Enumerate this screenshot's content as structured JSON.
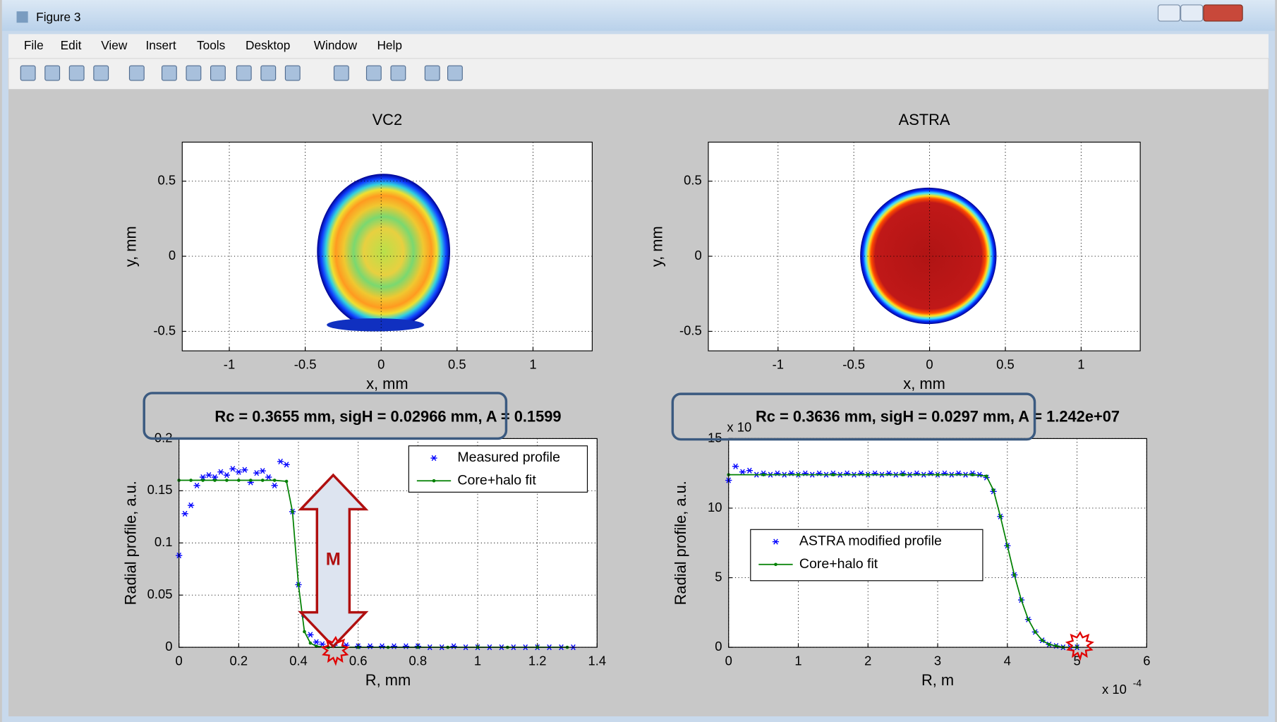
{
  "window": {
    "title": "Figure 3",
    "menu": [
      "File",
      "Edit",
      "View",
      "Insert",
      "Tools",
      "Desktop",
      "Window",
      "Help"
    ]
  },
  "annotations": {
    "arrow_label": "M"
  },
  "chart_data": [
    {
      "type": "image",
      "title": "VC2",
      "xlabel": "x, mm",
      "ylabel": "y, mm",
      "xlim": [
        -1.31,
        1.39
      ],
      "ylim": [
        -0.63,
        0.76
      ],
      "xticks": [
        -1,
        -0.5,
        0,
        0.5,
        1
      ],
      "yticks": [
        -0.5,
        0,
        0.5
      ],
      "grid": true,
      "colormap": "jet"
    },
    {
      "type": "image",
      "title": "ASTRA",
      "xlabel": "x, mm",
      "ylabel": "y, mm",
      "xlim": [
        -1.46,
        1.39
      ],
      "ylim": [
        -0.63,
        0.76
      ],
      "xticks": [
        -1,
        -0.5,
        0,
        0.5,
        1
      ],
      "yticks": [
        -0.5,
        0,
        0.5
      ],
      "grid": true,
      "colormap": "jet"
    },
    {
      "type": "line",
      "title": "Rc = 0.3655 mm,  sigH = 0.02966 mm,  A = 0.1599",
      "xlabel": "R, mm",
      "ylabel": "Radial profile, a.u.",
      "xlim": [
        0,
        1.4
      ],
      "ylim": [
        0,
        0.2
      ],
      "xticks": [
        0,
        0.2,
        0.4,
        0.6,
        0.8,
        1,
        1.2,
        1.4
      ],
      "yticks": [
        0,
        0.05,
        0.1,
        0.15,
        0.2
      ],
      "grid": true,
      "legend": "upper right",
      "series": [
        {
          "name": "Measured profile",
          "color": "#0000ff",
          "marker": "*",
          "line": false,
          "x": [
            0,
            0.02,
            0.04,
            0.06,
            0.08,
            0.1,
            0.12,
            0.14,
            0.16,
            0.18,
            0.2,
            0.22,
            0.24,
            0.26,
            0.28,
            0.3,
            0.32,
            0.34,
            0.36,
            0.38,
            0.4,
            0.42,
            0.44,
            0.46,
            0.48,
            0.52,
            0.56,
            0.6,
            0.64,
            0.68,
            0.72,
            0.76,
            0.8,
            0.84,
            0.88,
            0.92,
            0.96,
            1.0,
            1.04,
            1.08,
            1.12,
            1.16,
            1.2,
            1.24,
            1.28,
            1.32
          ],
          "values": [
            0.088,
            0.128,
            0.136,
            0.155,
            0.163,
            0.165,
            0.163,
            0.168,
            0.165,
            0.171,
            0.168,
            0.17,
            0.158,
            0.167,
            0.169,
            0.163,
            0.155,
            0.178,
            0.175,
            0.13,
            0.06,
            0.03,
            0.012,
            0.005,
            0.003,
            0.002,
            0.002,
            0.001,
            0.001,
            0.001,
            0.001,
            0.001,
            0.001,
            0,
            0,
            0.001,
            0,
            0,
            0,
            0,
            0,
            0,
            0,
            0,
            0,
            0
          ]
        },
        {
          "name": "Core+halo fit",
          "color": "#008000",
          "marker": ".",
          "line": true,
          "x": [
            0,
            0.04,
            0.08,
            0.12,
            0.16,
            0.2,
            0.24,
            0.28,
            0.32,
            0.36,
            0.38,
            0.4,
            0.42,
            0.44,
            0.46,
            0.5,
            0.6,
            0.7,
            0.8,
            0.9,
            1.0,
            1.1,
            1.2,
            1.3
          ],
          "values": [
            0.16,
            0.16,
            0.16,
            0.16,
            0.16,
            0.16,
            0.16,
            0.16,
            0.16,
            0.159,
            0.13,
            0.06,
            0.015,
            0.004,
            0.001,
            0,
            0,
            0,
            0,
            0,
            0,
            0,
            0,
            0
          ]
        }
      ]
    },
    {
      "type": "line",
      "title": "Rc = 0.3636 mm,  sigH = 0.0297 mm,  A = 1.242e+07",
      "xlabel": "R, m",
      "ylabel": "Radial profile, a.u.",
      "x_exponent_label": "x 10",
      "x_exponent": "-4",
      "y_exponent_label": "x 10",
      "xlim": [
        0,
        6
      ],
      "ylim": [
        0,
        15
      ],
      "xticks": [
        0,
        1,
        2,
        3,
        4,
        5,
        6
      ],
      "yticks": [
        0,
        5,
        10,
        15
      ],
      "grid": true,
      "legend": "center",
      "series": [
        {
          "name": "ASTRA modified profile",
          "color": "#0000ff",
          "marker": "*",
          "line": false,
          "x": [
            0,
            0.1,
            0.2,
            0.3,
            0.4,
            0.5,
            0.6,
            0.7,
            0.8,
            0.9,
            1.0,
            1.1,
            1.2,
            1.3,
            1.4,
            1.5,
            1.6,
            1.7,
            1.8,
            1.9,
            2.0,
            2.1,
            2.2,
            2.3,
            2.4,
            2.5,
            2.6,
            2.7,
            2.8,
            2.9,
            3.0,
            3.1,
            3.2,
            3.3,
            3.4,
            3.5,
            3.6,
            3.7,
            3.8,
            3.9,
            4.0,
            4.1,
            4.2,
            4.3,
            4.4,
            4.5,
            4.6,
            4.7,
            4.8,
            4.9,
            5.0
          ],
          "values": [
            12.0,
            13.0,
            12.6,
            12.7,
            12.4,
            12.5,
            12.4,
            12.5,
            12.4,
            12.5,
            12.4,
            12.5,
            12.4,
            12.5,
            12.4,
            12.5,
            12.4,
            12.5,
            12.4,
            12.5,
            12.4,
            12.5,
            12.4,
            12.5,
            12.4,
            12.5,
            12.4,
            12.5,
            12.4,
            12.5,
            12.4,
            12.5,
            12.4,
            12.5,
            12.4,
            12.5,
            12.4,
            12.2,
            11.2,
            9.4,
            7.3,
            5.2,
            3.4,
            2.0,
            1.1,
            0.5,
            0.2,
            0.1,
            0,
            0,
            0
          ]
        },
        {
          "name": "Core+halo fit",
          "color": "#008000",
          "marker": ".",
          "line": true,
          "x": [
            0,
            0.5,
            1,
            1.5,
            2,
            2.5,
            3,
            3.5,
            3.7,
            3.8,
            3.9,
            4.0,
            4.1,
            4.2,
            4.3,
            4.4,
            4.5,
            4.6,
            4.7,
            4.8,
            5.0
          ],
          "values": [
            12.4,
            12.4,
            12.4,
            12.4,
            12.4,
            12.4,
            12.4,
            12.4,
            12.3,
            11.3,
            9.4,
            7.3,
            5.2,
            3.4,
            2.0,
            1.1,
            0.5,
            0.2,
            0.1,
            0,
            0
          ]
        }
      ]
    }
  ]
}
